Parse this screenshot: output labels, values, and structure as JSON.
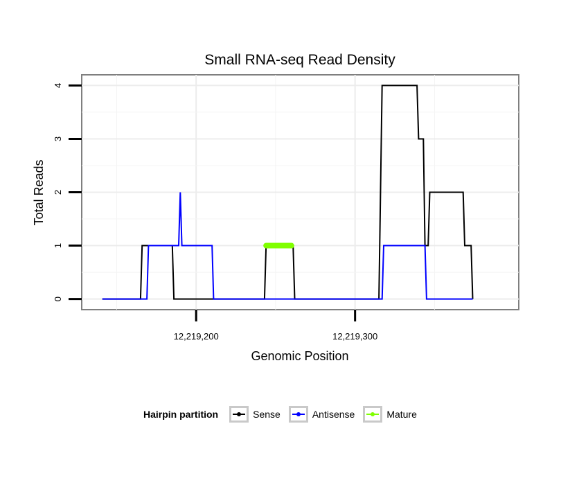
{
  "chart_data": {
    "type": "line",
    "title": "Small RNA-seq Read Density",
    "xlabel": "Genomic Position",
    "ylabel": "Total Reads",
    "xlim": [
      12219128,
      12219403
    ],
    "ylim": [
      -0.2,
      4.2
    ],
    "x_ticks": [
      12219200,
      12219300
    ],
    "x_tick_labels": [
      "12,219,200",
      "12,219,300"
    ],
    "y_ticks": [
      0,
      1,
      2,
      3,
      4
    ],
    "y_tick_labels": [
      "0",
      "1",
      "2",
      "3",
      "4"
    ],
    "grid": true,
    "series": [
      {
        "name": "Sense",
        "color": "#000000",
        "x": [
          12219141,
          12219165,
          12219166,
          12219185,
          12219186,
          12219243,
          12219244,
          12219261,
          12219262,
          12219315,
          12219316,
          12219317,
          12219339,
          12219340,
          12219343,
          12219344,
          12219346,
          12219347,
          12219368,
          12219369,
          12219373,
          12219374
        ],
        "y": [
          0,
          0,
          1,
          1,
          0,
          0,
          1,
          1,
          0,
          0,
          2,
          4,
          4,
          3,
          3,
          1,
          1,
          2,
          2,
          1,
          1,
          0
        ]
      },
      {
        "name": "Antisense",
        "color": "#0000ff",
        "x": [
          12219141,
          12219169,
          12219170,
          12219189,
          12219190,
          12219191,
          12219210,
          12219211,
          12219317,
          12219318,
          12219344,
          12219345,
          12219374
        ],
        "y": [
          0,
          0,
          1,
          1,
          2,
          1,
          1,
          0,
          0,
          1,
          1,
          0,
          0
        ]
      },
      {
        "name": "Mature",
        "color": "#80ff00",
        "x": [
          12219244,
          12219260
        ],
        "y": [
          1,
          1
        ]
      }
    ],
    "legend_title": "Hairpin partition",
    "legend_position": "bottom"
  }
}
